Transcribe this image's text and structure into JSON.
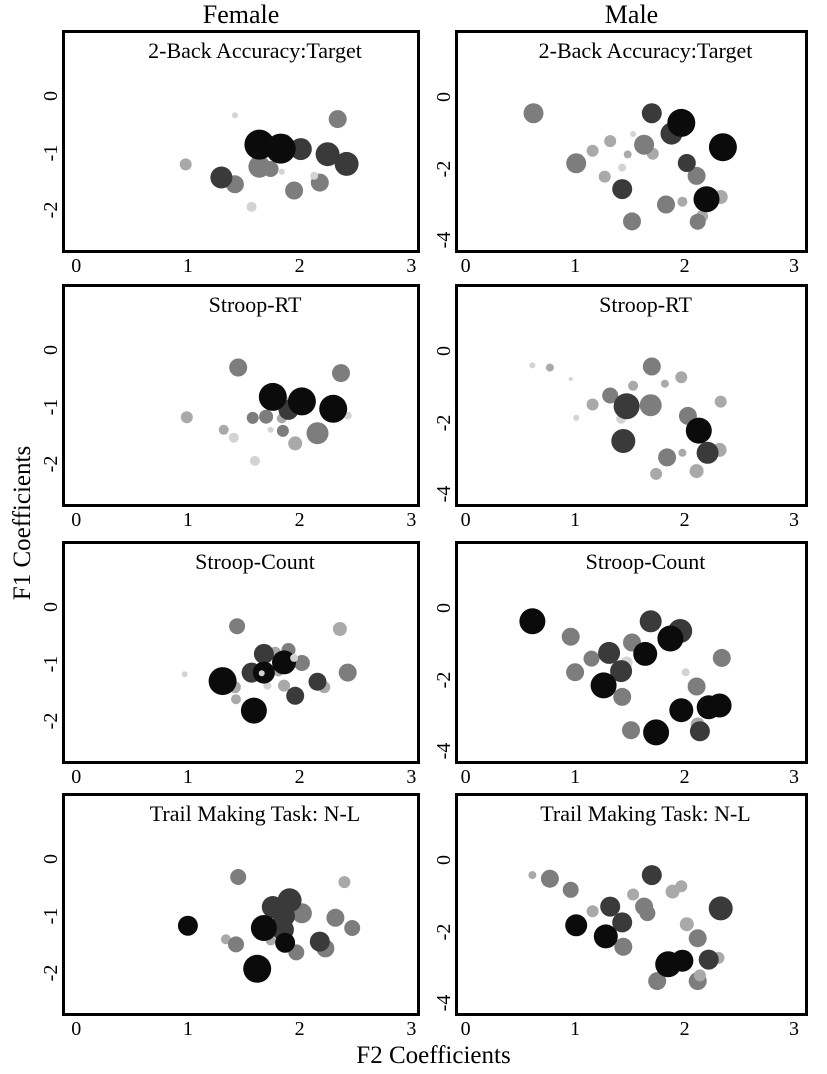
{
  "chart_data": {
    "type": "scatter",
    "columns": [
      "Female",
      "Male"
    ],
    "xlabel": "F2 Coefficients",
    "ylabel": "F1 Coefficients",
    "grid": false,
    "legend": "none",
    "palette": {
      "K": "#0b0b0b",
      "D": "#3a3a3a",
      "G": "#7d7d7d",
      "L": "#a9a9a9",
      "V": "#d3d3d3"
    },
    "point_encoding": "[x, y, radius_px, shade]",
    "charts": [
      {
        "title": "2-Back Accuracy:Target",
        "column": "Female",
        "xlim": [
          -0.1,
          3.05
        ],
        "ylim": [
          1.12,
          -2.71
        ],
        "xticks": [
          0,
          1,
          2,
          3
        ],
        "yticks": [
          0,
          -1,
          -2
        ],
        "points": [
          [
            1.42,
            -0.33,
            3,
            "V"
          ],
          [
            2.34,
            -0.4,
            9,
            "G"
          ],
          [
            0.98,
            -1.2,
            6,
            "L"
          ],
          [
            1.88,
            -0.74,
            4,
            "L"
          ],
          [
            1.64,
            -1.24,
            11,
            "G"
          ],
          [
            1.74,
            -1.28,
            8,
            "G"
          ],
          [
            1.42,
            -1.55,
            9,
            "G"
          ],
          [
            1.95,
            -1.66,
            9,
            "G"
          ],
          [
            2.18,
            -1.52,
            9,
            "G"
          ],
          [
            1.84,
            -1.33,
            3,
            "V"
          ],
          [
            2.13,
            -1.4,
            4,
            "V"
          ],
          [
            1.57,
            -1.95,
            5,
            "V"
          ],
          [
            2.01,
            -0.93,
            11,
            "D"
          ],
          [
            2.25,
            -1.02,
            12,
            "D"
          ],
          [
            2.42,
            -1.19,
            12,
            "D"
          ],
          [
            1.3,
            -1.43,
            11,
            "D"
          ],
          [
            1.64,
            -0.85,
            15,
            "K"
          ],
          [
            1.83,
            -0.92,
            15,
            "K"
          ]
        ]
      },
      {
        "title": "2-Back Accuracy:Target",
        "column": "Male",
        "xlim": [
          -0.07,
          3.1
        ],
        "ylim": [
          1.79,
          -4.27
        ],
        "xticks": [
          0,
          1,
          2,
          3
        ],
        "yticks": [
          0,
          -2,
          -4
        ],
        "points": [
          [
            0.62,
            -0.45,
            10,
            "G"
          ],
          [
            1.53,
            -1.03,
            3,
            "V"
          ],
          [
            1.32,
            -1.23,
            6,
            "L"
          ],
          [
            1.16,
            -1.5,
            6,
            "L"
          ],
          [
            1.48,
            -1.6,
            4,
            "L"
          ],
          [
            1.71,
            -1.58,
            6,
            "L"
          ],
          [
            1.63,
            -1.33,
            10,
            "G"
          ],
          [
            1.01,
            -1.85,
            10,
            "G"
          ],
          [
            1.43,
            -1.97,
            4,
            "V"
          ],
          [
            1.27,
            -2.22,
            6,
            "L"
          ],
          [
            2.11,
            -2.2,
            9,
            "G"
          ],
          [
            2.33,
            -2.79,
            7,
            "L"
          ],
          [
            1.98,
            -2.92,
            5,
            "L"
          ],
          [
            1.83,
            -3.0,
            9,
            "G"
          ],
          [
            1.52,
            -3.47,
            9,
            "G"
          ],
          [
            2.16,
            -3.33,
            6,
            "L"
          ],
          [
            2.12,
            -3.48,
            8,
            "G"
          ],
          [
            1.7,
            -0.45,
            10,
            "D"
          ],
          [
            1.88,
            -1.02,
            11,
            "D"
          ],
          [
            2.02,
            -1.84,
            9,
            "D"
          ],
          [
            1.43,
            -2.57,
            10,
            "D"
          ],
          [
            1.97,
            -0.72,
            14,
            "K"
          ],
          [
            2.35,
            -1.4,
            14,
            "K"
          ],
          [
            2.2,
            -2.85,
            13,
            "K"
          ]
        ]
      },
      {
        "title": "Stroop-RT",
        "column": "Female",
        "xlim": [
          -0.1,
          3.05
        ],
        "ylim": [
          1.12,
          -2.71
        ],
        "xticks": [
          0,
          1,
          2,
          3
        ],
        "yticks": [
          0,
          -1,
          -2
        ],
        "points": [
          [
            1.45,
            -0.3,
            9,
            "G"
          ],
          [
            2.37,
            -0.4,
            9,
            "G"
          ],
          [
            0.99,
            -1.18,
            6,
            "L"
          ],
          [
            1.58,
            -1.19,
            6,
            "G"
          ],
          [
            1.7,
            -1.17,
            7,
            "G"
          ],
          [
            1.84,
            -1.2,
            5,
            "L"
          ],
          [
            2.43,
            -1.15,
            4,
            "V"
          ],
          [
            1.32,
            -1.4,
            5,
            "L"
          ],
          [
            1.74,
            -1.4,
            3,
            "V"
          ],
          [
            1.85,
            -1.42,
            6,
            "G"
          ],
          [
            1.41,
            -1.54,
            5,
            "V"
          ],
          [
            2.16,
            -1.46,
            11,
            "G"
          ],
          [
            1.96,
            -1.64,
            7,
            "L"
          ],
          [
            1.6,
            -1.95,
            5,
            "V"
          ],
          [
            1.84,
            -0.9,
            7,
            "L"
          ],
          [
            1.9,
            -1.05,
            10,
            "D"
          ],
          [
            1.76,
            -0.82,
            14,
            "K"
          ],
          [
            2.02,
            -0.9,
            14,
            "K"
          ],
          [
            2.3,
            -1.03,
            14,
            "K"
          ]
        ]
      },
      {
        "title": "Stroop-RT",
        "column": "Male",
        "xlim": [
          -0.07,
          3.1
        ],
        "ylim": [
          1.79,
          -4.27
        ],
        "xticks": [
          0,
          1,
          2,
          3
        ],
        "yticks": [
          0,
          -2,
          -4
        ],
        "points": [
          [
            0.61,
            -0.4,
            3,
            "V"
          ],
          [
            0.77,
            -0.46,
            4,
            "L"
          ],
          [
            0.96,
            -0.78,
            2,
            "V"
          ],
          [
            1.97,
            -0.73,
            6,
            "L"
          ],
          [
            1.82,
            -0.91,
            4,
            "L"
          ],
          [
            1.53,
            -0.97,
            5,
            "L"
          ],
          [
            1.7,
            -0.43,
            9,
            "G"
          ],
          [
            1.32,
            -1.24,
            8,
            "G"
          ],
          [
            1.16,
            -1.49,
            6,
            "L"
          ],
          [
            2.33,
            -1.41,
            6,
            "L"
          ],
          [
            1.69,
            -1.51,
            11,
            "G"
          ],
          [
            2.03,
            -1.81,
            9,
            "G"
          ],
          [
            1.01,
            -1.86,
            3,
            "V"
          ],
          [
            1.42,
            -1.89,
            5,
            "V"
          ],
          [
            1.84,
            -2.97,
            9,
            "G"
          ],
          [
            2.32,
            -2.76,
            7,
            "L"
          ],
          [
            1.98,
            -2.84,
            4,
            "L"
          ],
          [
            1.74,
            -3.43,
            6,
            "L"
          ],
          [
            2.11,
            -3.35,
            7,
            "L"
          ],
          [
            1.47,
            -1.54,
            13,
            "D"
          ],
          [
            1.44,
            -2.51,
            12,
            "D"
          ],
          [
            2.21,
            -2.84,
            11,
            "D"
          ],
          [
            2.13,
            -2.22,
            13,
            "K"
          ]
        ]
      },
      {
        "title": "Stroop-Count",
        "column": "Female",
        "xlim": [
          -0.1,
          3.05
        ],
        "ylim": [
          1.12,
          -2.71
        ],
        "xticks": [
          0,
          1,
          2,
          3
        ],
        "yticks": [
          0,
          -1,
          -2
        ],
        "points": [
          [
            1.44,
            -0.33,
            8,
            "G"
          ],
          [
            2.36,
            -0.38,
            7,
            "L"
          ],
          [
            1.9,
            -0.75,
            7,
            "G"
          ],
          [
            1.78,
            -0.8,
            6,
            "L"
          ],
          [
            2.02,
            -0.98,
            8,
            "G"
          ],
          [
            1.81,
            -1.13,
            5,
            "L"
          ],
          [
            0.97,
            -1.18,
            3,
            "V"
          ],
          [
            1.42,
            -1.41,
            6,
            "L"
          ],
          [
            1.71,
            -1.38,
            4,
            "V"
          ],
          [
            1.86,
            -1.38,
            6,
            "L"
          ],
          [
            2.22,
            -1.41,
            6,
            "L"
          ],
          [
            2.43,
            -1.15,
            9,
            "G"
          ],
          [
            1.43,
            -1.62,
            5,
            "L"
          ],
          [
            1.68,
            -0.82,
            10,
            "D"
          ],
          [
            1.57,
            -1.15,
            10,
            "D"
          ],
          [
            1.96,
            -1.56,
            9,
            "D"
          ],
          [
            2.16,
            -1.31,
            9,
            "D"
          ],
          [
            1.86,
            -0.97,
            12,
            "K"
          ],
          [
            1.68,
            -1.15,
            11,
            "K"
          ],
          [
            1.31,
            -1.3,
            14,
            "K"
          ],
          [
            1.59,
            -1.82,
            13,
            "K"
          ],
          [
            1.95,
            -0.89,
            4,
            "V"
          ],
          [
            1.66,
            -1.16,
            3,
            "V"
          ]
        ]
      },
      {
        "title": "Stroop-Count",
        "column": "Male",
        "xlim": [
          -0.07,
          3.1
        ],
        "ylim": [
          1.79,
          -4.27
        ],
        "xticks": [
          0,
          1,
          2,
          3
        ],
        "yticks": [
          0,
          -2,
          -4
        ],
        "points": [
          [
            0.96,
            -0.8,
            9,
            "G"
          ],
          [
            1.52,
            -0.96,
            9,
            "G"
          ],
          [
            1.15,
            -1.41,
            8,
            "G"
          ],
          [
            2.34,
            -1.39,
            9,
            "G"
          ],
          [
            1.47,
            -1.52,
            6,
            "V"
          ],
          [
            1.0,
            -1.79,
            9,
            "G"
          ],
          [
            2.01,
            -1.79,
            4,
            "V"
          ],
          [
            1.43,
            -2.48,
            9,
            "G"
          ],
          [
            2.11,
            -2.19,
            9,
            "G"
          ],
          [
            1.51,
            -3.41,
            9,
            "G"
          ],
          [
            2.12,
            -3.25,
            7,
            "L"
          ],
          [
            1.69,
            -0.37,
            11,
            "D"
          ],
          [
            1.96,
            -0.64,
            12,
            "D"
          ],
          [
            1.31,
            -1.25,
            11,
            "D"
          ],
          [
            1.42,
            -1.76,
            11,
            "D"
          ],
          [
            2.14,
            -3.44,
            10,
            "D"
          ],
          [
            0.61,
            -0.37,
            13,
            "K"
          ],
          [
            1.87,
            -0.85,
            13,
            "K"
          ],
          [
            1.64,
            -1.28,
            12,
            "K"
          ],
          [
            1.26,
            -2.16,
            13,
            "K"
          ],
          [
            1.97,
            -2.85,
            12,
            "K"
          ],
          [
            2.22,
            -2.77,
            12,
            "K"
          ],
          [
            2.32,
            -2.72,
            12,
            "K"
          ],
          [
            1.74,
            -3.47,
            13,
            "K"
          ]
        ]
      },
      {
        "title": "Trail Making Task: N-L",
        "column": "Female",
        "xlim": [
          -0.1,
          3.05
        ],
        "ylim": [
          1.12,
          -2.71
        ],
        "xticks": [
          0,
          1,
          2,
          3
        ],
        "yticks": [
          0,
          -1,
          -2
        ],
        "points": [
          [
            1.45,
            -0.31,
            8,
            "G"
          ],
          [
            2.4,
            -0.4,
            6,
            "L"
          ],
          [
            2.02,
            -0.95,
            10,
            "G"
          ],
          [
            2.32,
            -1.03,
            9,
            "G"
          ],
          [
            2.47,
            -1.21,
            8,
            "G"
          ],
          [
            1.34,
            -1.41,
            5,
            "L"
          ],
          [
            1.43,
            -1.5,
            8,
            "G"
          ],
          [
            1.74,
            -1.43,
            5,
            "L"
          ],
          [
            2.23,
            -1.57,
            9,
            "G"
          ],
          [
            1.97,
            -1.64,
            8,
            "G"
          ],
          [
            1.91,
            -0.72,
            12,
            "D"
          ],
          [
            1.76,
            -0.84,
            11,
            "D"
          ],
          [
            1.86,
            -1.0,
            11,
            "D"
          ],
          [
            1.85,
            -1.24,
            11,
            "D"
          ],
          [
            2.18,
            -1.45,
            10,
            "D"
          ],
          [
            1.0,
            -1.17,
            10,
            "K"
          ],
          [
            1.68,
            -1.21,
            13,
            "K"
          ],
          [
            1.87,
            -1.47,
            10,
            "K"
          ],
          [
            1.62,
            -1.93,
            14,
            "K"
          ]
        ]
      },
      {
        "title": "Trail Making Task: N-L",
        "column": "Male",
        "xlim": [
          -0.07,
          3.1
        ],
        "ylim": [
          1.79,
          -4.27
        ],
        "xticks": [
          0,
          1,
          2,
          3
        ],
        "yticks": [
          0,
          -2,
          -4
        ],
        "points": [
          [
            0.61,
            -0.42,
            4,
            "L"
          ],
          [
            0.77,
            -0.52,
            9,
            "G"
          ],
          [
            0.96,
            -0.83,
            8,
            "G"
          ],
          [
            1.89,
            -0.88,
            7,
            "L"
          ],
          [
            1.97,
            -0.73,
            6,
            "L"
          ],
          [
            1.53,
            -0.96,
            6,
            "L"
          ],
          [
            1.16,
            -1.43,
            6,
            "L"
          ],
          [
            1.63,
            -1.3,
            9,
            "G"
          ],
          [
            1.66,
            -1.48,
            8,
            "G"
          ],
          [
            2.02,
            -1.79,
            7,
            "L"
          ],
          [
            2.12,
            -2.18,
            9,
            "G"
          ],
          [
            1.44,
            -2.42,
            9,
            "G"
          ],
          [
            2.31,
            -2.73,
            6,
            "L"
          ],
          [
            1.75,
            -3.38,
            9,
            "G"
          ],
          [
            2.12,
            -3.38,
            9,
            "G"
          ],
          [
            2.14,
            -3.22,
            6,
            "L"
          ],
          [
            1.7,
            -0.42,
            10,
            "D"
          ],
          [
            1.32,
            -1.3,
            10,
            "D"
          ],
          [
            2.33,
            -1.35,
            12,
            "D"
          ],
          [
            1.43,
            -1.74,
            10,
            "D"
          ],
          [
            2.22,
            -2.78,
            10,
            "D"
          ],
          [
            1.01,
            -1.82,
            11,
            "K"
          ],
          [
            1.28,
            -2.13,
            12,
            "K"
          ],
          [
            1.85,
            -2.91,
            13,
            "K"
          ],
          [
            1.98,
            -2.81,
            11,
            "K"
          ]
        ]
      }
    ]
  }
}
